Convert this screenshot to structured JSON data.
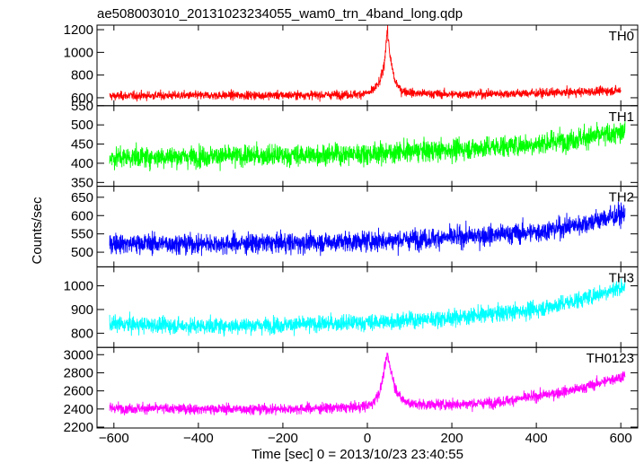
{
  "chart_data": {
    "type": "line",
    "title": "ae508003010_20131023234055_wam0_trn_4band_long.qdp",
    "xlabel": "Time [sec] 0 = 2013/10/23 23:40:55",
    "ylabel": "Counts/sec",
    "xlim": [
      -640,
      640
    ],
    "xticks": [
      -600,
      -400,
      -200,
      0,
      200,
      400,
      600
    ],
    "xtick_labels": [
      "−600",
      "−400",
      "−200",
      "0",
      "200",
      "400",
      "600"
    ],
    "grid": false,
    "panels": [
      {
        "name": "TH0",
        "color": "#ff0000",
        "ylim": [
          530,
          1240
        ],
        "yticks": [
          600,
          800,
          1000,
          1200
        ],
        "ytick_labels": [
          "600",
          "800",
          "1000",
          "1200"
        ],
        "series": [
          {
            "name": "TH0",
            "x": [
              -610,
              -500,
              -400,
              -300,
              -200,
              -100,
              -20,
              10,
              30,
              40,
              47,
              55,
              65,
              80,
              110,
              200,
              300,
              400,
              500,
              600
            ],
            "y": [
              615,
              620,
              620,
              622,
              622,
              625,
              630,
              650,
              740,
              900,
              1200,
              930,
              750,
              665,
              640,
              630,
              635,
              640,
              650,
              665
            ]
          }
        ]
      },
      {
        "name": "TH1",
        "color": "#00ff00",
        "ylim": [
          340,
          550
        ],
        "yticks": [
          350,
          400,
          450,
          500,
          550
        ],
        "ytick_labels": [
          "350",
          "400",
          "450",
          "500",
          "550"
        ],
        "series": [
          {
            "name": "TH1",
            "x": [
              -610,
              -400,
              -200,
              0,
              50,
              200,
              400,
              500,
              610
            ],
            "y": [
              415,
              418,
              420,
              425,
              428,
              435,
              450,
              465,
              480
            ]
          }
        ]
      },
      {
        "name": "TH2",
        "color": "#0000ff",
        "ylim": [
          460,
          680
        ],
        "yticks": [
          500,
          550,
          600,
          650
        ],
        "ytick_labels": [
          "500",
          "550",
          "600",
          "650"
        ],
        "series": [
          {
            "name": "TH2",
            "x": [
              -610,
              -400,
              -200,
              0,
              200,
              400,
              500,
              610
            ],
            "y": [
              525,
              523,
              525,
              530,
              540,
              555,
              575,
              605
            ]
          }
        ]
      },
      {
        "name": "TH3",
        "color": "#00ffff",
        "ylim": [
          740,
          1080
        ],
        "yticks": [
          800,
          900,
          1000
        ],
        "ytick_labels": [
          "800",
          "900",
          "1000"
        ],
        "series": [
          {
            "name": "TH3",
            "x": [
              -610,
              -400,
              -200,
              0,
              200,
              400,
              500,
              610
            ],
            "y": [
              838,
              830,
              835,
              845,
              865,
              900,
              940,
              1000
            ]
          }
        ]
      },
      {
        "name": "TH0123",
        "color": "#ff00ff",
        "ylim": [
          2190,
          3080
        ],
        "yticks": [
          2200,
          2400,
          2600,
          2800,
          3000
        ],
        "ytick_labels": [
          "2200",
          "2400",
          "2600",
          "2800",
          "3000"
        ],
        "series": [
          {
            "name": "TH0123",
            "x": [
              -610,
              -400,
              -200,
              -100,
              -20,
              10,
              30,
              40,
              47,
              55,
              65,
              80,
              110,
              200,
              300,
              400,
              500,
              610
            ],
            "y": [
              2410,
              2400,
              2400,
              2410,
              2420,
              2450,
              2600,
              2820,
              3000,
              2850,
              2650,
              2510,
              2450,
              2450,
              2470,
              2540,
              2620,
              2770
            ]
          }
        ]
      }
    ]
  }
}
